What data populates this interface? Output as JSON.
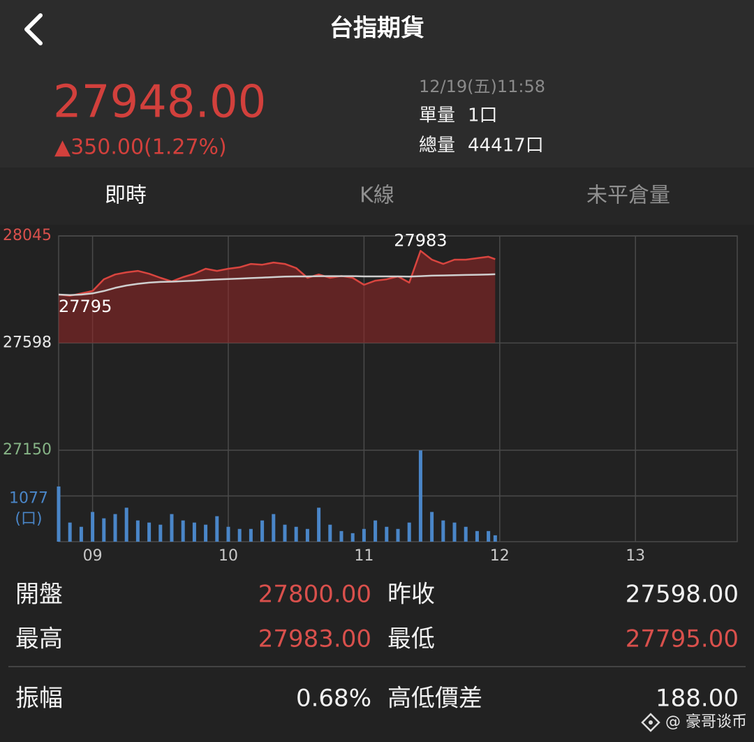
{
  "header": {
    "title": "台指期貨"
  },
  "quote": {
    "price": "27948.00",
    "change": "▲350.00(1.27%)",
    "time": "12/19(五)11:58",
    "single_volume_label": "單量",
    "single_volume": "1口",
    "total_volume_label": "總量",
    "total_volume": "44417口"
  },
  "tabs": {
    "items": [
      "即時",
      "K線",
      "未平倉量"
    ],
    "active": 0
  },
  "chart_data": {
    "type": "line",
    "x": [
      8.75,
      8.8333,
      8.9167,
      9,
      9.0833,
      9.1667,
      9.25,
      9.3333,
      9.4167,
      9.5,
      9.5833,
      9.6667,
      9.75,
      9.8333,
      9.9167,
      10,
      10.0833,
      10.1667,
      10.25,
      10.3333,
      10.4167,
      10.5,
      10.5833,
      10.6667,
      10.75,
      10.8333,
      10.9167,
      11,
      11.0833,
      11.1667,
      11.25,
      11.3333,
      11.4167,
      11.5,
      11.5833,
      11.6667,
      11.75,
      11.8333,
      11.9167,
      11.9667
    ],
    "xlim": [
      8.75,
      13.75
    ],
    "xticks": [
      {
        "value": 9,
        "label": "09"
      },
      10,
      11,
      12,
      13
    ],
    "ylim": [
      27150,
      28045
    ],
    "yticks": [
      28045,
      27598,
      27150
    ],
    "ytick_colors": [
      "#d9504c",
      "#e8e8e8",
      "#86b486"
    ],
    "baseline": 27598,
    "grid": true,
    "series": [
      {
        "color": "#d9453f",
        "fill": "rgba(150,38,38,0.55)",
        "values": [
          27800,
          27795,
          27805,
          27815,
          27864,
          27884,
          27893,
          27899,
          27887,
          27870,
          27855,
          27873,
          27887,
          27908,
          27899,
          27908,
          27914,
          27928,
          27925,
          27934,
          27928,
          27911,
          27870,
          27884,
          27870,
          27878,
          27870,
          27841,
          27858,
          27864,
          27876,
          27850,
          27983,
          27946,
          27928,
          27946,
          27946,
          27952,
          27958,
          27948
        ]
      },
      {
        "color": "#cfcfcf",
        "values": [
          27800,
          27798,
          27800,
          27805,
          27815,
          27828,
          27838,
          27845,
          27850,
          27853,
          27854,
          27856,
          27858,
          27861,
          27863,
          27865,
          27867,
          27869,
          27871,
          27873,
          27875,
          27876,
          27876,
          27877,
          27877,
          27877,
          27877,
          27876,
          27876,
          27876,
          27876,
          27875,
          27877,
          27879,
          27880,
          27881,
          27882,
          27883,
          27884,
          27885
        ]
      }
    ],
    "annotations": [
      "27983",
      "27795"
    ],
    "volume": {
      "color": "#4a86c8",
      "ylim": [
        0,
        2154
      ],
      "yticks": [
        1077
      ],
      "unit": "(口)",
      "values": [
        1300,
        450,
        350,
        700,
        550,
        650,
        800,
        500,
        450,
        400,
        650,
        500,
        450,
        400,
        600,
        350,
        300,
        300,
        500,
        650,
        400,
        350,
        300,
        800,
        400,
        250,
        200,
        300,
        500,
        350,
        300,
        450,
        2150,
        700,
        500,
        450,
        350,
        250,
        250,
        150
      ]
    }
  },
  "stats": [
    {
      "label": "開盤",
      "value": "27800.00",
      "color": "#d9504c"
    },
    {
      "label": "昨收",
      "value": "27598.00",
      "color": "#f2f2f2"
    },
    {
      "label": "最高",
      "value": "27983.00",
      "color": "#d9504c"
    },
    {
      "label": "最低",
      "value": "27795.00",
      "color": "#d9504c"
    },
    {
      "label": "振幅",
      "value": "0.68%",
      "color": "#f2f2f2"
    },
    {
      "label": "高低價差",
      "value": "188.00",
      "color": "#f2f2f2"
    }
  ],
  "watermark": "@ 豪哥谈币"
}
